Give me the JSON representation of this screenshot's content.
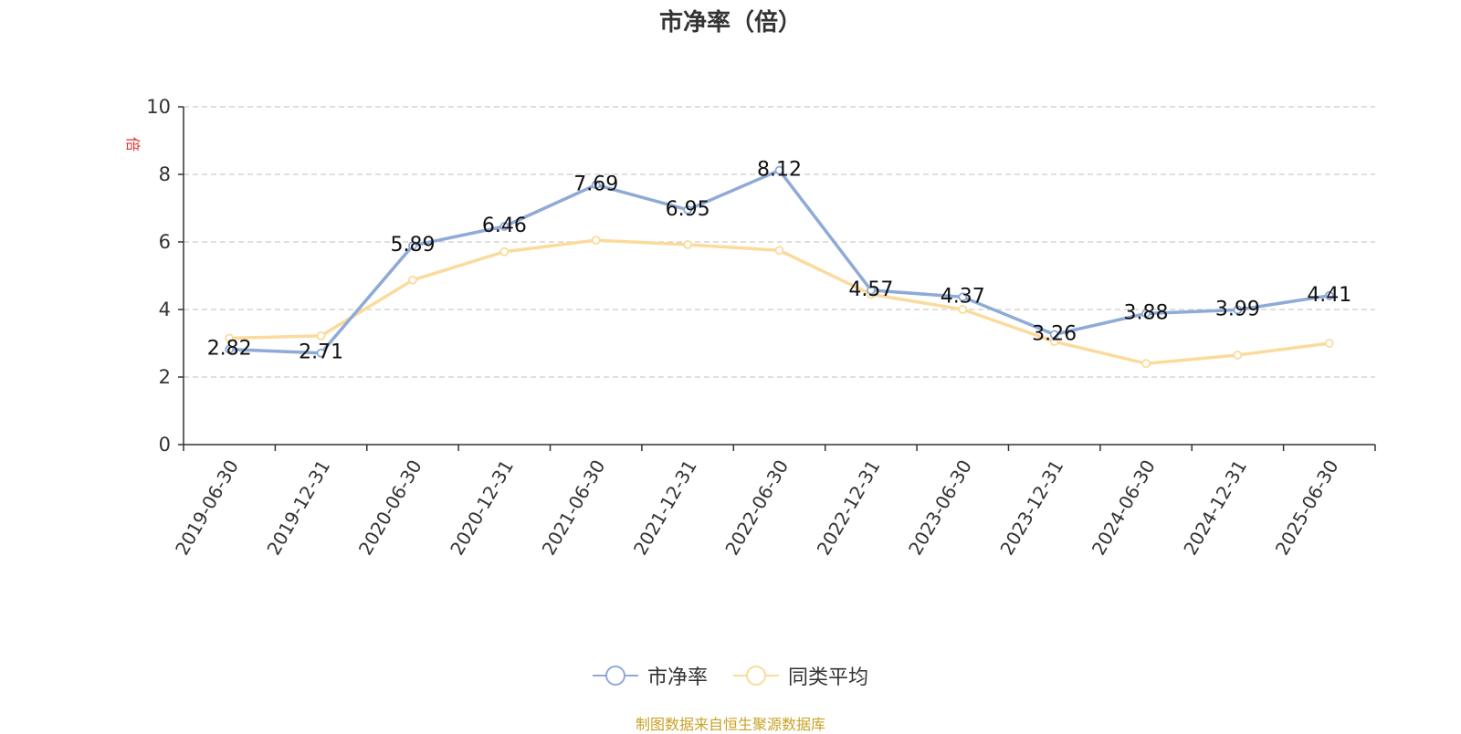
{
  "chart_data": {
    "type": "line",
    "title": "市净率（倍）",
    "ylabel": "倍",
    "ylim": [
      0,
      10
    ],
    "yticks": [
      "0",
      "2",
      "4",
      "6",
      "8",
      "10"
    ],
    "categories": [
      "2019-06-30",
      "2019-12-31",
      "2020-06-30",
      "2020-12-31",
      "2021-06-30",
      "2021-12-31",
      "2022-06-30",
      "2022-12-31",
      "2023-06-30",
      "2023-12-31",
      "2024-06-30",
      "2024-12-31",
      "2025-06-30"
    ],
    "series": [
      {
        "name": "市净率",
        "color": "#8eaad6",
        "values": [
          2.82,
          2.71,
          5.89,
          6.46,
          7.69,
          6.95,
          8.12,
          4.57,
          4.37,
          3.26,
          3.88,
          3.99,
          4.41
        ],
        "labels": [
          "2.82",
          "2.71",
          "5.89",
          "6.46",
          "7.69",
          "6.95",
          "8.12",
          "4.57",
          "4.37",
          "3.26",
          "3.88",
          "3.99",
          "4.41"
        ]
      },
      {
        "name": "同类平均",
        "color": "#fbdb9c",
        "values": [
          3.15,
          3.22,
          4.87,
          5.71,
          6.05,
          5.92,
          5.75,
          4.45,
          4.0,
          3.05,
          2.4,
          2.65,
          3.0
        ]
      }
    ],
    "grid": true,
    "legend_position": "bottom-center"
  },
  "source_note": "制图数据来自恒生聚源数据库"
}
